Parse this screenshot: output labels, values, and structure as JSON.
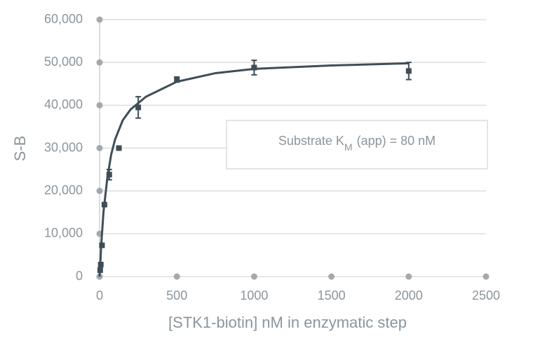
{
  "chart_data": {
    "type": "scatter",
    "xlabel": "[STK1-biotin] nM in enzymatic step",
    "ylabel": "S-B",
    "xlim": [
      0,
      2500
    ],
    "xticks": [
      0,
      500,
      1000,
      1500,
      2000,
      2500
    ],
    "ylim": [
      0,
      60000
    ],
    "yticks": [
      0,
      {
        "value": 10000,
        "label": "10,000"
      },
      {
        "value": 20000,
        "label": "20,000"
      },
      {
        "value": 30000,
        "label": "30,000"
      },
      {
        "value": 40000,
        "label": "40,000"
      },
      {
        "value": 50000,
        "label": "50,000"
      },
      {
        "value": 60000,
        "label": "60,000"
      }
    ],
    "grid": true,
    "series": [
      {
        "color": "#3f4d56",
        "x": [
          3.9,
          7.8,
          15.6,
          31.25,
          62.5,
          125,
          250,
          500,
          1000,
          2000
        ],
        "values": [
          1500,
          2800,
          7300,
          16800,
          23800,
          30000,
          39500,
          46000,
          48800,
          48000
        ],
        "errors": [
          null,
          null,
          null,
          null,
          1200,
          null,
          2500,
          600,
          1700,
          2000
        ]
      }
    ],
    "fit": {
      "color": "#3f4d56",
      "x": [
        0,
        10,
        25,
        50,
        75,
        100,
        150,
        200,
        300,
        500,
        750,
        1000,
        1500,
        2000
      ],
      "values": [
        0,
        7000,
        15000,
        23000,
        28500,
        32000,
        36500,
        39000,
        42000,
        45500,
        47500,
        48500,
        49300,
        49800
      ]
    },
    "annotation": {
      "text": "Substrate K",
      "subscript": "M",
      "text_after": "(app) = 80 nM"
    }
  }
}
